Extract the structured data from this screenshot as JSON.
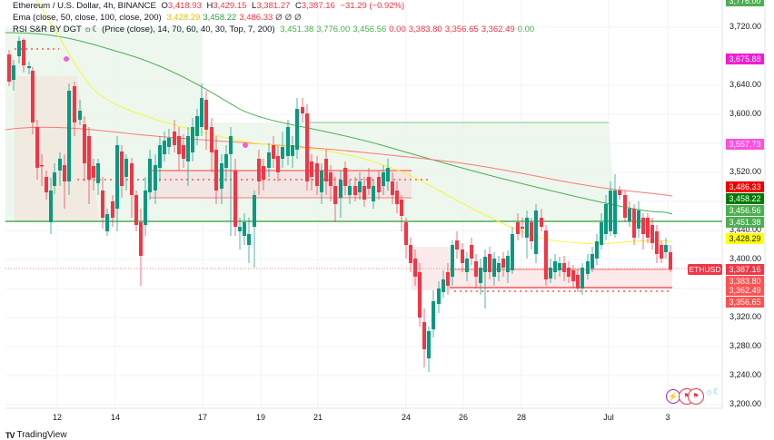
{
  "header": {
    "symbol_line": "Ethereum / U.S. Dollar, 4h, BINANCE",
    "open_label": "O",
    "open": "3,418.93",
    "high_label": "H",
    "high": "3,429.15",
    "low_label": "L",
    "low": "3,381.27",
    "close_label": "C",
    "close": "3,387.16",
    "change": "−31.29 (−0.92%)"
  },
  "indicators": [
    {
      "name": "Ema (close, 50, close, 100, close, 200)",
      "values": [
        "3,428.29",
        "3,458.22",
        "3,486.33",
        "Ø",
        "Ø",
        "Ø"
      ],
      "colors": [
        "#e0c200",
        "#2e9e3c",
        "#f23645",
        "#555555",
        "#555555",
        "#555555"
      ]
    },
    {
      "name": "RSI S&R BY DGT ☼☾ (Price (close), 14, 70, 60, 40, 30, Top, 7, 200)",
      "values": [
        "3,451.38",
        "3,776.00",
        "3,456.56",
        "0.00",
        "3,383.80",
        "3,356.65",
        "3,362.49",
        "0.00"
      ],
      "colors": [
        "#4caf50",
        "#4caf50",
        "#4caf50",
        "#f23645",
        "#f23645",
        "#f23645",
        "#f23645",
        "#4caf50"
      ]
    }
  ],
  "y_axis": {
    "ticks": [
      "3,720.00",
      "3,640.00",
      "3,600.00",
      "3,520.00",
      "3,440.00",
      "3,400.00",
      "3,320.00",
      "3,280.00",
      "3,240.00",
      "3,200.00"
    ],
    "tick_values": [
      3720,
      3640,
      3600,
      3520,
      3440,
      3400,
      3320,
      3280,
      3240,
      3200
    ]
  },
  "price_tags": [
    {
      "label": "3,776.00",
      "value": 3776,
      "bg": "#4caf50"
    },
    {
      "label": "3,675.88",
      "value": 3675.88,
      "bg": "#f21bd2"
    },
    {
      "label": "3,557.73",
      "value": 3557.73,
      "bg": "#ff4fe0"
    },
    {
      "label": "3,486.33",
      "value": 3486.33,
      "bg": "#f20000"
    },
    {
      "label": "3,458.22",
      "value": 3458.22,
      "bg": "#007b00"
    },
    {
      "label": "3,456.56",
      "value": 3456.56,
      "bg": "#4caf50"
    },
    {
      "label": "3,451.38",
      "value": 3451.38,
      "bg": "#4caf50"
    },
    {
      "label": "3,428.29",
      "value": 3428.29,
      "bg": "#ffff00",
      "fg": "#131722"
    },
    {
      "label": "3,387.16",
      "value": 3387.16,
      "bg": "#f23645"
    },
    {
      "label": "3,383.80",
      "value": 3383.8,
      "bg": "#ff5252"
    },
    {
      "label": "3,362.49",
      "value": 3362.49,
      "bg": "#ff5252"
    },
    {
      "label": "3,356.65",
      "value": 3356.65,
      "bg": "#ff5252"
    }
  ],
  "symbol_tag": "ETHUSD",
  "x_axis": {
    "labels": [
      "12",
      "14",
      "17",
      "19",
      "21",
      "24",
      "26",
      "28",
      "Jul",
      "3"
    ],
    "positions": [
      63,
      127,
      223,
      287,
      350,
      447,
      510,
      574,
      670,
      735
    ]
  },
  "branding": {
    "logo": "TV",
    "name": "TradingView"
  },
  "colors": {
    "up": "#089981",
    "down": "#f23645",
    "ema50": "#f5f53a",
    "ema100": "#4caf50",
    "ema200": "#f23645"
  },
  "chart_data": {
    "type": "candlestick",
    "title": "Ethereum / U.S. Dollar, 4h, BINANCE",
    "ylim": [
      3190,
      3790
    ],
    "x_tick_labels": [
      "12",
      "14",
      "17",
      "19",
      "21",
      "24",
      "26",
      "28",
      "Jul",
      "3"
    ],
    "last_close": 3387.16,
    "ema_50_last": 3428.29,
    "ema_100_last": 3458.22,
    "ema_200_last": 3486.33,
    "support_resistance": [
      3776.0,
      3456.56,
      3451.38,
      3383.8,
      3362.49,
      3356.65
    ]
  }
}
